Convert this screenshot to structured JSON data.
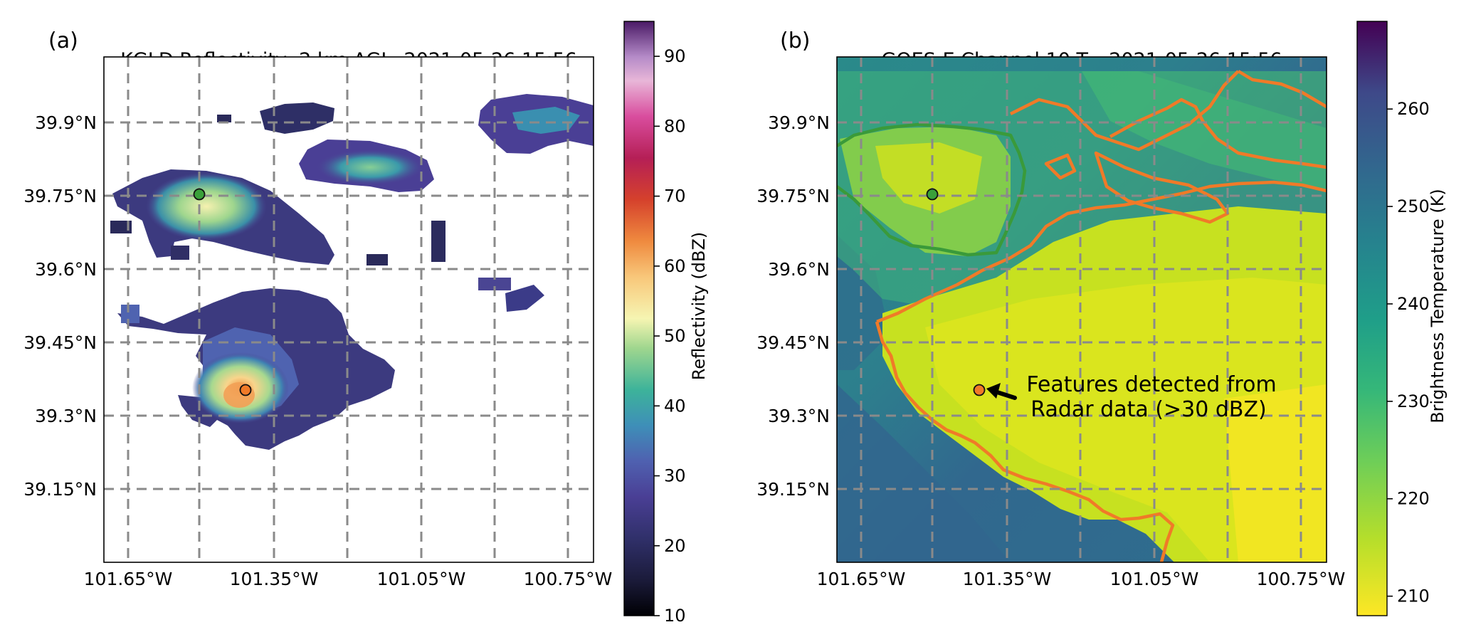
{
  "figure": {
    "panel_a": {
      "letter": "(a)",
      "title": "KGLD Reflectivity, 2 km AGL, 2021-05-26 15:56",
      "y_ticks": [
        "39.9°N",
        "39.75°N",
        "39.6°N",
        "39.45°N",
        "39.3°N",
        "39.15°N"
      ],
      "x_ticks": [
        "101.65°W",
        "101.35°W",
        "101.05°W",
        "100.75°W"
      ],
      "colorbar": {
        "label": "Reflectivity (dBZ)",
        "ticks": [
          "10",
          "20",
          "30",
          "40",
          "50",
          "60",
          "70",
          "80",
          "90"
        ],
        "range": [
          10,
          95
        ],
        "colormap": "magma-like (reflectivity)"
      }
    },
    "panel_b": {
      "letter": "(b)",
      "title_main": "GOES-E Channel 10 T",
      "title_sub": "b",
      "title_rest": ", 2021-05-26 15:56",
      "y_ticks": [
        "39.9°N",
        "39.75°N",
        "39.6°N",
        "39.45°N",
        "39.3°N",
        "39.15°N"
      ],
      "x_ticks": [
        "101.65°W",
        "101.35°W",
        "101.05°W",
        "100.75°W"
      ],
      "colorbar": {
        "label": "Brightness Temperature (K)",
        "ticks": [
          "210",
          "220",
          "230",
          "240",
          "250",
          "260"
        ],
        "range": [
          208,
          269
        ],
        "colormap": "viridis_r"
      },
      "annotation_line1": "Features detected from",
      "annotation_line2": "Radar data (>30 dBZ)"
    },
    "markers": [
      {
        "color": "#3aa03a",
        "lon": -101.52,
        "lat": 39.75
      },
      {
        "color": "#f07a28",
        "lon": -101.42,
        "lat": 39.36
      }
    ],
    "colors": {
      "grid": "#8a8a8a",
      "radar_feature_contour": "#f07a28",
      "second_feature_contour": "#3a9a3a"
    }
  }
}
